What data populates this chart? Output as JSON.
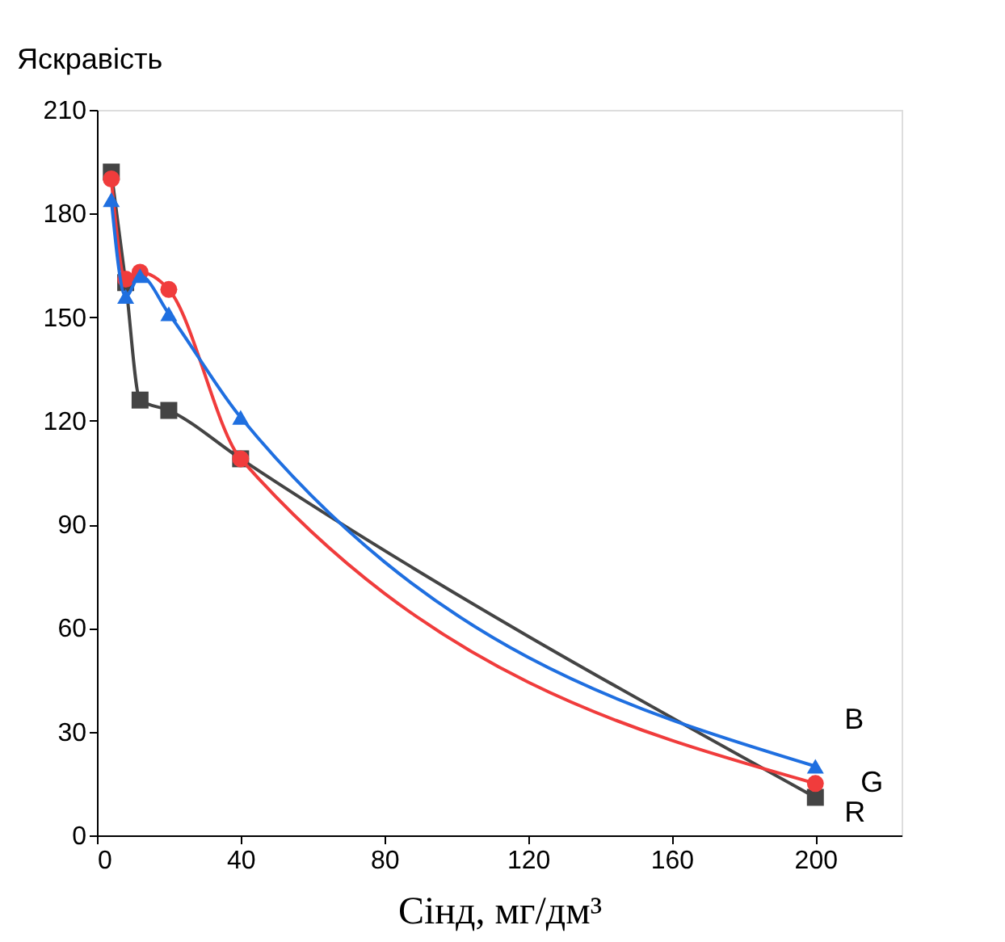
{
  "chart_data": {
    "type": "line",
    "xlabel": "Cінд, мг/дм³",
    "ylabel": "Яскравість",
    "x": [
      4,
      8,
      12,
      20,
      40,
      200
    ],
    "series": [
      {
        "name": "R",
        "color": "#444444",
        "marker": "square",
        "values": [
          192,
          160,
          126,
          123,
          109,
          11
        ]
      },
      {
        "name": "G",
        "color": "#f03c3c",
        "marker": "circle",
        "values": [
          190,
          161,
          163,
          158,
          109,
          15
        ]
      },
      {
        "name": "B",
        "color": "#1f6fe0",
        "marker": "triangle",
        "values": [
          184,
          156,
          162,
          151,
          121,
          20
        ]
      }
    ],
    "xlim": [
      0,
      224
    ],
    "xticks": [
      0,
      40,
      80,
      120,
      160,
      200
    ],
    "ylim": [
      0,
      210
    ],
    "yticks": [
      0,
      30,
      60,
      90,
      120,
      150,
      180,
      210
    ],
    "grid": false,
    "legend": false,
    "line_style": "solid"
  }
}
